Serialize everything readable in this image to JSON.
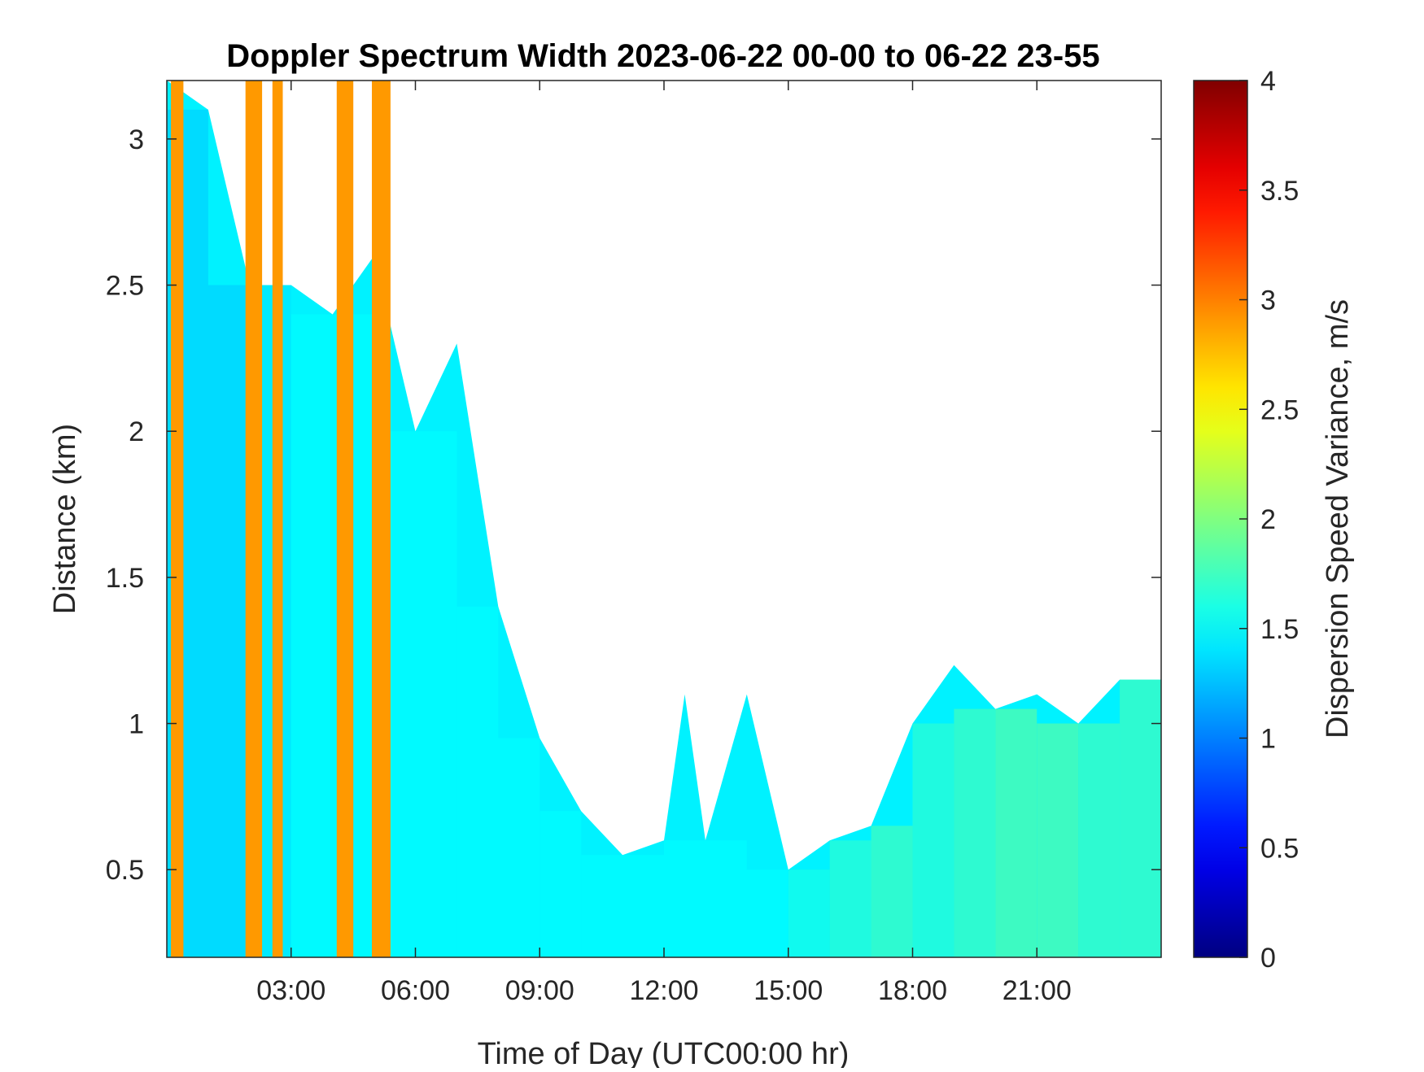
{
  "chart_data": {
    "type": "heatmap",
    "title": "Doppler Spectrum Width 2023-06-22 00-00 to 06-22 23-55",
    "xlabel": "Time of Day (UTC00:00 hr)",
    "ylabel": "Distance (km)",
    "colorbar_label": "Dispersion Speed Variance, m/s",
    "x_range_hours": [
      0,
      24
    ],
    "y_range_km": [
      0.2,
      3.2
    ],
    "color_range": [
      0,
      4
    ],
    "colormap": "jet",
    "x_ticks": [
      {
        "value": 3,
        "label": "03:00"
      },
      {
        "value": 6,
        "label": "06:00"
      },
      {
        "value": 9,
        "label": "09:00"
      },
      {
        "value": 12,
        "label": "12:00"
      },
      {
        "value": 15,
        "label": "15:00"
      },
      {
        "value": 18,
        "label": "18:00"
      },
      {
        "value": 21,
        "label": "21:00"
      }
    ],
    "y_ticks": [
      {
        "value": 0.5,
        "label": "0.5"
      },
      {
        "value": 1,
        "label": "1"
      },
      {
        "value": 1.5,
        "label": "1.5"
      },
      {
        "value": 2,
        "label": "2"
      },
      {
        "value": 2.5,
        "label": "2.5"
      },
      {
        "value": 3,
        "label": "3"
      }
    ],
    "colorbar_ticks": [
      {
        "value": 0,
        "label": "0"
      },
      {
        "value": 0.5,
        "label": "0.5"
      },
      {
        "value": 1,
        "label": "1"
      },
      {
        "value": 1.5,
        "label": "1.5"
      },
      {
        "value": 2,
        "label": "2"
      },
      {
        "value": 2.5,
        "label": "2.5"
      },
      {
        "value": 3,
        "label": "3"
      },
      {
        "value": 3.5,
        "label": "3.5"
      },
      {
        "value": 4,
        "label": "4"
      }
    ],
    "saturated_bands": [
      {
        "start_hr": 0.1,
        "end_hr": 0.4,
        "top_km": 3.2,
        "value": 2.9
      },
      {
        "start_hr": 1.9,
        "end_hr": 2.3,
        "top_km": 3.2,
        "value": 2.9
      },
      {
        "start_hr": 2.55,
        "end_hr": 2.8,
        "top_km": 3.2,
        "value": 2.9
      },
      {
        "start_hr": 4.1,
        "end_hr": 4.5,
        "top_km": 3.2,
        "value": 2.9
      },
      {
        "start_hr": 4.95,
        "end_hr": 5.4,
        "top_km": 3.2,
        "value": 2.9
      }
    ],
    "echo_top_profile": [
      {
        "hr": 0.0,
        "top_km": 3.2,
        "value": 1.3
      },
      {
        "hr": 1.0,
        "top_km": 3.1,
        "value": 1.3
      },
      {
        "hr": 2.0,
        "top_km": 2.5,
        "value": 1.4
      },
      {
        "hr": 3.0,
        "top_km": 2.5,
        "value": 1.5
      },
      {
        "hr": 4.0,
        "top_km": 2.4,
        "value": 1.5
      },
      {
        "hr": 5.0,
        "top_km": 2.6,
        "value": 1.5
      },
      {
        "hr": 6.0,
        "top_km": 2.0,
        "value": 1.5
      },
      {
        "hr": 7.0,
        "top_km": 2.3,
        "value": 1.5
      },
      {
        "hr": 8.0,
        "top_km": 1.4,
        "value": 1.5
      },
      {
        "hr": 9.0,
        "top_km": 0.95,
        "value": 1.5
      },
      {
        "hr": 10.0,
        "top_km": 0.7,
        "value": 1.5
      },
      {
        "hr": 11.0,
        "top_km": 0.55,
        "value": 1.5
      },
      {
        "hr": 12.0,
        "top_km": 0.6,
        "value": 1.5
      },
      {
        "hr": 12.5,
        "top_km": 1.1,
        "value": 1.5
      },
      {
        "hr": 13.0,
        "top_km": 0.6,
        "value": 1.5
      },
      {
        "hr": 14.0,
        "top_km": 1.1,
        "value": 1.5
      },
      {
        "hr": 15.0,
        "top_km": 0.5,
        "value": 1.6
      },
      {
        "hr": 16.0,
        "top_km": 0.6,
        "value": 1.7
      },
      {
        "hr": 17.0,
        "top_km": 0.65,
        "value": 1.8
      },
      {
        "hr": 18.0,
        "top_km": 1.0,
        "value": 1.7
      },
      {
        "hr": 19.0,
        "top_km": 1.2,
        "value": 1.8
      },
      {
        "hr": 20.0,
        "top_km": 1.05,
        "value": 1.9
      },
      {
        "hr": 21.0,
        "top_km": 1.1,
        "value": 1.9
      },
      {
        "hr": 22.0,
        "top_km": 1.0,
        "value": 1.8
      },
      {
        "hr": 23.0,
        "top_km": 1.15,
        "value": 1.8
      },
      {
        "hr": 24.0,
        "top_km": 1.15,
        "value": 1.8
      }
    ],
    "grid": false
  }
}
